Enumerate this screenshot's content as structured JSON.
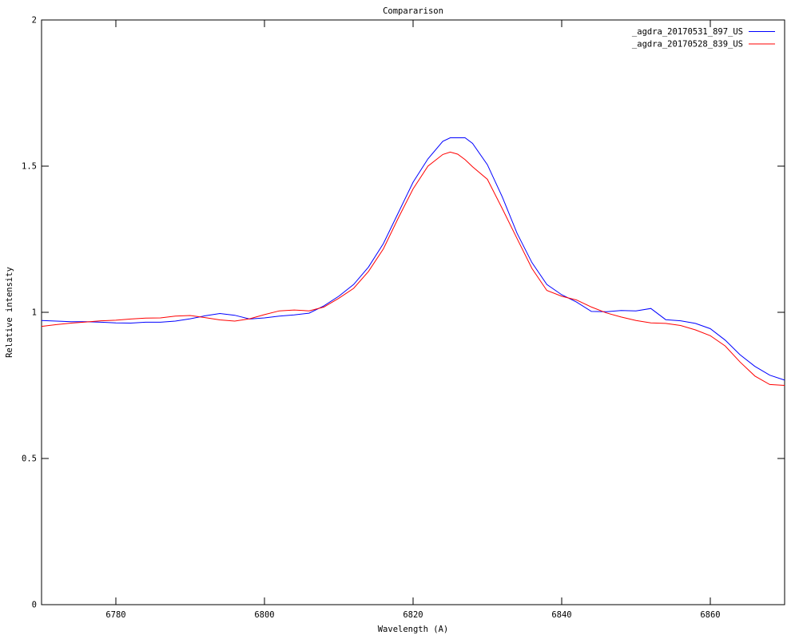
{
  "window": {
    "background": "#ffffff",
    "foreground": "#000000"
  },
  "chart_data": {
    "type": "line",
    "title": "Compararison",
    "xlabel": "Wavelength (A)",
    "ylabel": "Relative intensity",
    "xlim": [
      6770,
      6870
    ],
    "ylim": [
      0,
      2
    ],
    "xticks": [
      6780,
      6800,
      6820,
      6840,
      6860
    ],
    "yticks": [
      0,
      0.5,
      1,
      1.5,
      2
    ],
    "grid": false,
    "legend_position": "top-right-inside",
    "axis_color": "#000000",
    "series": [
      {
        "name": "_agdra_20170531_897_US",
        "color": "#0000ff",
        "x": [
          6770,
          6772,
          6774,
          6776,
          6778,
          6780,
          6782,
          6784,
          6786,
          6788,
          6790,
          6792,
          6794,
          6796,
          6798,
          6800,
          6802,
          6804,
          6806,
          6808,
          6810,
          6812,
          6814,
          6816,
          6818,
          6820,
          6822,
          6824,
          6825,
          6826,
          6827,
          6828,
          6830,
          6832,
          6834,
          6836,
          6838,
          6840,
          6842,
          6844,
          6846,
          6848,
          6850,
          6852,
          6854,
          6856,
          6858,
          6860,
          6862,
          6864,
          6866,
          6868,
          6870
        ],
        "y": [
          0.972,
          0.97,
          0.968,
          0.968,
          0.966,
          0.964,
          0.963,
          0.966,
          0.966,
          0.97,
          0.978,
          0.988,
          0.996,
          0.99,
          0.977,
          0.981,
          0.987,
          0.991,
          0.997,
          1.022,
          1.055,
          1.095,
          1.155,
          1.235,
          1.34,
          1.445,
          1.525,
          1.585,
          1.597,
          1.597,
          1.597,
          1.578,
          1.505,
          1.395,
          1.27,
          1.17,
          1.095,
          1.06,
          1.035,
          1.003,
          1.002,
          1.006,
          1.005,
          1.013,
          0.975,
          0.971,
          0.962,
          0.944,
          0.905,
          0.855,
          0.815,
          0.785,
          0.768
        ]
      },
      {
        "name": "_agdra_20170528_839_US",
        "color": "#ff0000",
        "x": [
          6770,
          6772,
          6774,
          6776,
          6778,
          6780,
          6782,
          6784,
          6786,
          6788,
          6790,
          6792,
          6794,
          6796,
          6798,
          6800,
          6802,
          6804,
          6806,
          6808,
          6810,
          6812,
          6814,
          6816,
          6818,
          6820,
          6822,
          6824,
          6825,
          6826,
          6827,
          6828,
          6830,
          6832,
          6834,
          6836,
          6838,
          6840,
          6842,
          6844,
          6846,
          6848,
          6850,
          6852,
          6854,
          6856,
          6858,
          6860,
          6862,
          6864,
          6866,
          6868,
          6870
        ],
        "y": [
          0.952,
          0.958,
          0.963,
          0.967,
          0.971,
          0.973,
          0.977,
          0.98,
          0.981,
          0.987,
          0.989,
          0.982,
          0.974,
          0.97,
          0.978,
          0.992,
          1.005,
          1.008,
          1.005,
          1.018,
          1.048,
          1.082,
          1.14,
          1.217,
          1.322,
          1.422,
          1.5,
          1.54,
          1.548,
          1.541,
          1.522,
          1.498,
          1.455,
          1.355,
          1.252,
          1.15,
          1.075,
          1.055,
          1.042,
          1.018,
          0.998,
          0.984,
          0.972,
          0.964,
          0.962,
          0.955,
          0.94,
          0.92,
          0.885,
          0.83,
          0.782,
          0.753,
          0.75
        ]
      }
    ]
  }
}
